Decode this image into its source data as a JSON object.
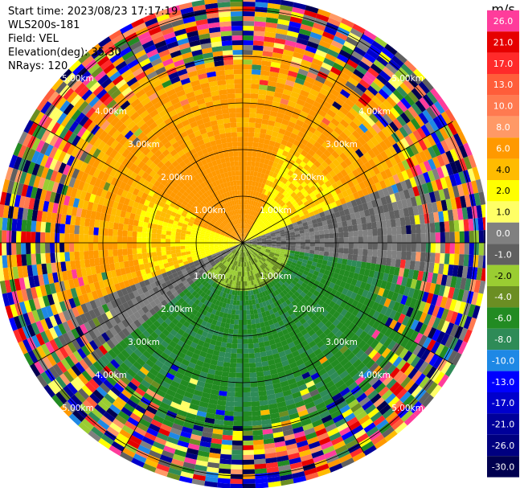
{
  "info": {
    "start_time": "Start time: 2023/08/23 17:17:19",
    "instrument": "WLS200s-181",
    "field": "Field: VEL",
    "elevation": "Elevation(deg): 35.30",
    "nrays": "NRays: 120"
  },
  "ppi": {
    "range_rings_km": [
      1,
      2,
      3,
      4,
      5
    ],
    "ring_labels": [
      "1.00km",
      "2.00km",
      "3.00km",
      "4.00km",
      "5.00km"
    ]
  },
  "colorbar": {
    "unit": "m/s",
    "levels": [
      {
        "label": "26.0",
        "color": "#ff3c9b"
      },
      {
        "label": "21.0",
        "color": "#e60000"
      },
      {
        "label": "17.0",
        "color": "#ff2a2a"
      },
      {
        "label": "13.0",
        "color": "#ff5d3a"
      },
      {
        "label": "10.0",
        "color": "#ff7a50"
      },
      {
        "label": "8.0",
        "color": "#ff9966"
      },
      {
        "label": "6.0",
        "color": "#ff9900"
      },
      {
        "label": "4.0",
        "color": "#ffbb00"
      },
      {
        "label": "2.0",
        "color": "#ffff00"
      },
      {
        "label": "1.0",
        "color": "#ffff66"
      },
      {
        "label": "0.0",
        "color": "#808080"
      },
      {
        "label": "-1.0",
        "color": "#606060"
      },
      {
        "label": "-2.0",
        "color": "#9acd32"
      },
      {
        "label": "-4.0",
        "color": "#6b8e23"
      },
      {
        "label": "-6.0",
        "color": "#228b22"
      },
      {
        "label": "-8.0",
        "color": "#2e8b57"
      },
      {
        "label": "-10.0",
        "color": "#1e88e5"
      },
      {
        "label": "-13.0",
        "color": "#0000ff"
      },
      {
        "label": "-17.0",
        "color": "#0000cc"
      },
      {
        "label": "-21.0",
        "color": "#00009a"
      },
      {
        "label": "-26.0",
        "color": "#000080"
      },
      {
        "label": "-30.0",
        "color": "#000050"
      }
    ]
  }
}
